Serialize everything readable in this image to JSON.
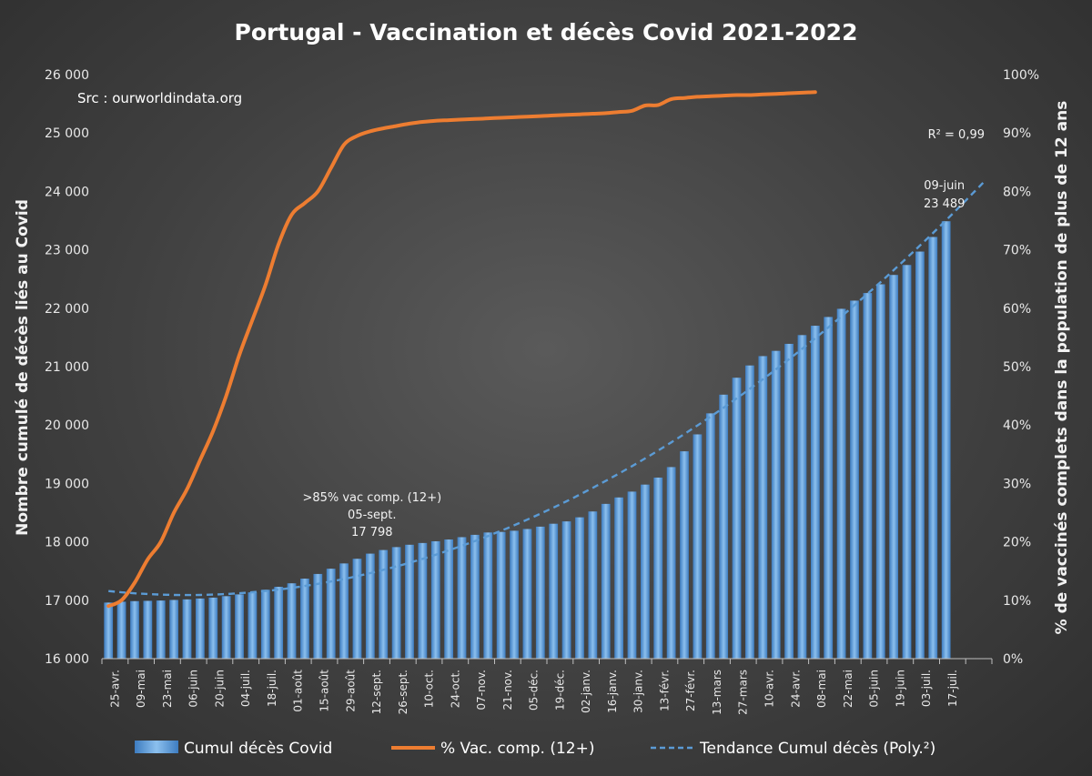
{
  "chart_data": {
    "type": "bar",
    "title": "Portugal - Vaccination et décès Covid 2021-2022",
    "source_note": "Src : ourworldindata.org",
    "ylabel_left": "Nombre cumulé de décès liés au Covid",
    "ylabel_right": "% de vaccinés complets dans  la population de plus de 12 ans",
    "ylim_left": [
      16000,
      26000
    ],
    "ylim_right": [
      0,
      100
    ],
    "y_ticks_left": [
      "16 000",
      "17 000",
      "18 000",
      "19 000",
      "20 000",
      "21 000",
      "22 000",
      "23 000",
      "24 000",
      "25 000",
      "26 000"
    ],
    "y_ticks_right": [
      "0%",
      "10%",
      "20%",
      "30%",
      "40%",
      "50%",
      "60%",
      "70%",
      "80%",
      "90%",
      "100%"
    ],
    "x_tick_labels": [
      "25-avr.",
      "09-mai",
      "23-mai",
      "06-juin",
      "20-juin",
      "04-juil.",
      "18-juil.",
      "01-août",
      "15-août",
      "29-août",
      "12-sept.",
      "26-sept.",
      "10-oct.",
      "24-oct.",
      "07-nov.",
      "21-nov.",
      "05-déc.",
      "19-déc.",
      "02-janv.",
      "16-janv.",
      "30-janv.",
      "13-févr.",
      "27-févr.",
      "13-mars",
      "27-mars",
      "10-avr.",
      "24-avr.",
      "08-mai",
      "22-mai",
      "05-juin",
      "19-juin",
      "03-juil.",
      "17-juil."
    ],
    "grid": false,
    "legend_position": "bottom",
    "series": [
      {
        "name": "Cumul décès Covid",
        "kind": "bar",
        "color": "#5b9bd5",
        "values": [
          16960,
          16975,
          16985,
          16990,
          16995,
          17005,
          17015,
          17030,
          17045,
          17070,
          17100,
          17135,
          17180,
          17230,
          17290,
          17370,
          17450,
          17540,
          17630,
          17710,
          17798,
          17860,
          17910,
          17950,
          17980,
          18010,
          18040,
          18080,
          18120,
          18160,
          18170,
          18190,
          18220,
          18260,
          18310,
          18350,
          18420,
          18520,
          18650,
          18760,
          18860,
          18980,
          19100,
          19280,
          19550,
          19840,
          20200,
          20520,
          20810,
          21020,
          21180,
          21270,
          21390,
          21540,
          21700,
          21850,
          21990,
          22130,
          22260,
          22410,
          22570,
          22740,
          22970,
          23220,
          23489
        ]
      },
      {
        "name": "% Vac. comp. (12+)",
        "kind": "line",
        "axis": "right",
        "color": "#ed7d31",
        "values": [
          9,
          10,
          13,
          17,
          20,
          25,
          29,
          34,
          39,
          45,
          52,
          58,
          64,
          71,
          76,
          78,
          80,
          84,
          88,
          89.5,
          90.3,
          90.8,
          91.2,
          91.6,
          91.9,
          92.1,
          92.2,
          92.3,
          92.4,
          92.5,
          92.6,
          92.7,
          92.8,
          92.9,
          93.0,
          93.1,
          93.2,
          93.3,
          93.4,
          93.6,
          93.8,
          94.7,
          94.8,
          95.8,
          96.0,
          96.2,
          96.3,
          96.4,
          96.5,
          96.5,
          96.6,
          96.7,
          96.8,
          96.9,
          97.0
        ]
      },
      {
        "name": "Tendance Cumul décès (Poly.²)",
        "kind": "trendline",
        "style": "dashed",
        "color": "#5b9bd5",
        "r_squared_label": "R² = 0,99"
      }
    ],
    "annotations": [
      {
        "lines": [
          ">85% vac comp. (12+)",
          "05-sept.",
          "17 798"
        ]
      },
      {
        "lines": [
          "09-juin",
          "23 489"
        ]
      }
    ]
  }
}
